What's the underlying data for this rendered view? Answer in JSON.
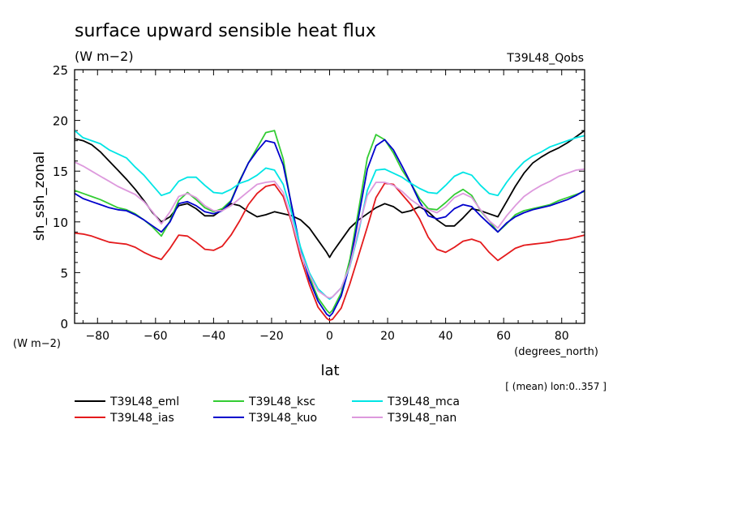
{
  "chart_data": {
    "type": "line",
    "title": "surface upward sensible heat flux",
    "units": "(W m−2)",
    "experiment": "T39L48_Qobs",
    "ylabel": "sh_ssh_zonal",
    "yunits": "(W m−2)",
    "xlabel": "lat",
    "xunits": "(degrees_north)",
    "footnote": "[ (mean) lon:0..357 ]",
    "xlim": [
      -87.9,
      87.9
    ],
    "ylim": [
      0,
      25
    ],
    "xticks": [
      -80,
      -60,
      -40,
      -20,
      0,
      20,
      40,
      60,
      80
    ],
    "xtick_labels": [
      "−80",
      "−60",
      "−40",
      "−20",
      "0",
      "20",
      "40",
      "60",
      "80"
    ],
    "yticks": [
      0,
      5,
      10,
      15,
      20,
      25
    ],
    "ytick_labels": [
      "0",
      "5",
      "10",
      "15",
      "20",
      "25"
    ],
    "grid": false,
    "legend_position": "bottom",
    "x": [
      -87.9,
      -85,
      -82,
      -79,
      -76,
      -73,
      -70,
      -67,
      -64,
      -61,
      -58,
      -55,
      -52,
      -49,
      -46,
      -43,
      -40,
      -37,
      -34,
      -31,
      -28,
      -25,
      -22,
      -19,
      -16,
      -13,
      -10,
      -7,
      -4,
      -1,
      0,
      1,
      4,
      7,
      10,
      13,
      16,
      19,
      22,
      25,
      28,
      31,
      34,
      37,
      40,
      43,
      46,
      49,
      52,
      55,
      58,
      61,
      64,
      67,
      70,
      73,
      76,
      79,
      82,
      85,
      87.9
    ],
    "series": [
      {
        "name": "T39L48_eml",
        "color": "#000000",
        "values": [
          18.2,
          18.0,
          17.6,
          16.9,
          16.0,
          15.1,
          14.2,
          13.2,
          12.1,
          10.9,
          10.0,
          10.5,
          11.6,
          11.8,
          11.3,
          10.6,
          10.6,
          11.2,
          11.8,
          11.6,
          11.0,
          10.5,
          10.7,
          11.0,
          10.8,
          10.6,
          10.2,
          9.4,
          8.2,
          7.0,
          6.5,
          7.0,
          8.2,
          9.4,
          10.2,
          10.8,
          11.4,
          11.8,
          11.5,
          10.9,
          11.1,
          11.5,
          11.0,
          10.2,
          9.6,
          9.6,
          10.4,
          11.3,
          11.1,
          10.8,
          10.5,
          12.0,
          13.5,
          14.8,
          15.8,
          16.4,
          16.9,
          17.3,
          17.8,
          18.4,
          19.0
        ]
      },
      {
        "name": "T39L48_ias",
        "color": "#e41a1c",
        "values": [
          8.9,
          8.8,
          8.6,
          8.3,
          8.0,
          7.9,
          7.8,
          7.5,
          7.0,
          6.6,
          6.3,
          7.4,
          8.7,
          8.6,
          8.0,
          7.3,
          7.2,
          7.6,
          8.7,
          10.1,
          11.7,
          12.8,
          13.5,
          13.7,
          12.5,
          9.9,
          6.5,
          3.8,
          1.6,
          0.5,
          0.3,
          0.4,
          1.5,
          3.9,
          6.7,
          9.5,
          12.4,
          13.8,
          13.7,
          12.7,
          11.7,
          10.3,
          8.5,
          7.3,
          7.0,
          7.5,
          8.1,
          8.3,
          8.0,
          7.0,
          6.2,
          6.8,
          7.4,
          7.7,
          7.8,
          7.9,
          8.0,
          8.2,
          8.3,
          8.5,
          8.7
        ]
      },
      {
        "name": "T39L48_ksc",
        "color": "#33cc33",
        "values": [
          13.1,
          12.8,
          12.5,
          12.2,
          11.8,
          11.4,
          11.2,
          10.8,
          10.2,
          9.5,
          8.6,
          10.1,
          12.1,
          12.9,
          12.2,
          11.4,
          11.0,
          11.3,
          12.1,
          14.1,
          15.8,
          17.3,
          18.8,
          19.0,
          16.2,
          11.3,
          7.2,
          4.6,
          2.5,
          1.3,
          1.0,
          1.3,
          3.0,
          6.3,
          11.2,
          16.3,
          18.6,
          18.1,
          16.8,
          15.1,
          13.8,
          12.3,
          11.3,
          11.2,
          11.9,
          12.7,
          13.2,
          12.6,
          11.1,
          10.1,
          9.0,
          9.8,
          10.7,
          11.1,
          11.3,
          11.5,
          11.7,
          12.1,
          12.4,
          12.7,
          13.0
        ]
      },
      {
        "name": "T39L48_kuo",
        "color": "#0000cc",
        "values": [
          12.8,
          12.3,
          12.0,
          11.7,
          11.4,
          11.2,
          11.1,
          10.7,
          10.2,
          9.6,
          9.0,
          10.0,
          11.8,
          12.0,
          11.6,
          11.0,
          10.8,
          11.1,
          12.0,
          14.0,
          15.8,
          17.0,
          18.0,
          17.8,
          15.6,
          11.5,
          7.3,
          4.3,
          2.2,
          0.9,
          0.7,
          1.0,
          2.7,
          5.8,
          10.5,
          15.2,
          17.5,
          18.1,
          17.1,
          15.5,
          13.8,
          12.0,
          10.6,
          10.3,
          10.5,
          11.3,
          11.7,
          11.5,
          10.6,
          9.8,
          9.0,
          9.9,
          10.5,
          10.9,
          11.2,
          11.4,
          11.6,
          11.9,
          12.2,
          12.6,
          13.1
        ]
      },
      {
        "name": "T39L48_mca",
        "color": "#00e5e5",
        "values": [
          19.0,
          18.3,
          18.0,
          17.7,
          17.1,
          16.7,
          16.3,
          15.4,
          14.6,
          13.6,
          12.6,
          12.9,
          14.0,
          14.4,
          14.4,
          13.6,
          12.9,
          12.8,
          13.2,
          13.8,
          14.1,
          14.6,
          15.3,
          15.1,
          13.7,
          10.8,
          7.5,
          5.0,
          3.4,
          2.6,
          2.4,
          2.6,
          3.5,
          5.6,
          9.0,
          13.1,
          15.1,
          15.2,
          14.8,
          14.4,
          13.8,
          13.3,
          12.9,
          12.8,
          13.6,
          14.5,
          14.9,
          14.6,
          13.6,
          12.8,
          12.6,
          13.9,
          15.0,
          15.9,
          16.5,
          16.9,
          17.4,
          17.7,
          18.0,
          18.3,
          18.5
        ]
      },
      {
        "name": "T39L48_nan",
        "color": "#dd99dd",
        "values": [
          15.9,
          15.5,
          15.0,
          14.5,
          14.0,
          13.5,
          13.1,
          12.7,
          12.0,
          11.0,
          9.8,
          11.0,
          12.5,
          12.8,
          12.4,
          11.6,
          11.1,
          11.1,
          11.6,
          12.3,
          13.0,
          13.7,
          13.9,
          14.0,
          12.9,
          10.1,
          7.0,
          4.8,
          3.2,
          2.6,
          2.5,
          2.6,
          3.5,
          5.7,
          9.3,
          12.6,
          13.9,
          13.9,
          13.6,
          13.0,
          12.2,
          11.6,
          11.2,
          10.9,
          11.5,
          12.4,
          12.8,
          12.4,
          11.2,
          10.1,
          9.4,
          10.6,
          11.6,
          12.5,
          13.1,
          13.6,
          14.0,
          14.5,
          14.8,
          15.1,
          15.2
        ]
      }
    ]
  }
}
